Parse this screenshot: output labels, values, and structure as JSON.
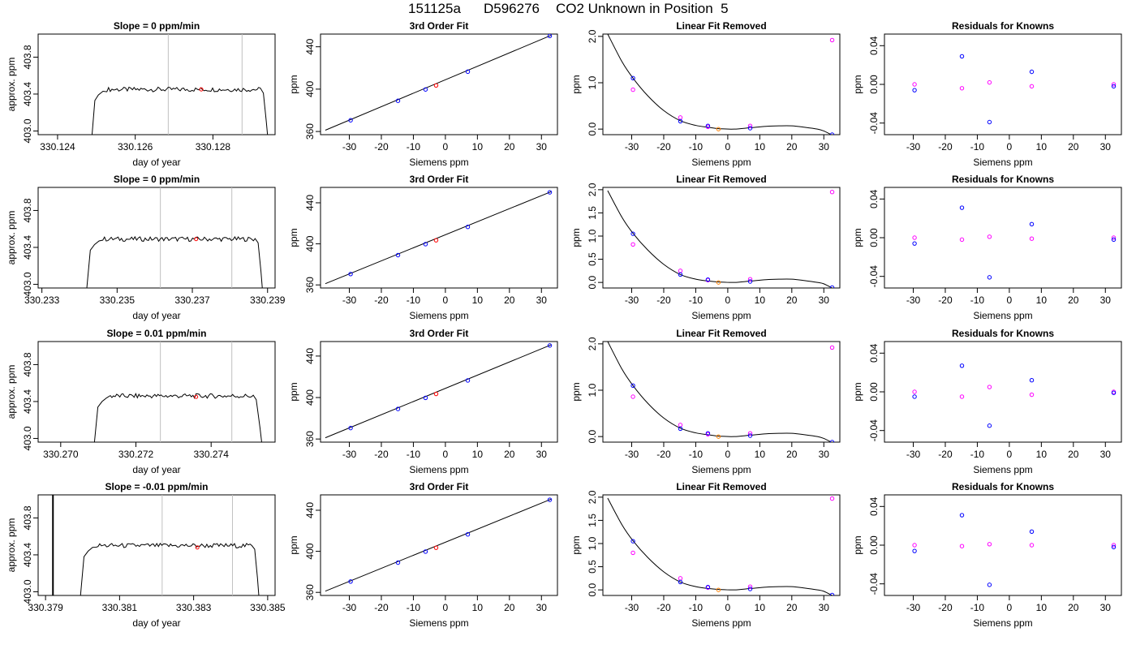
{
  "title": {
    "run": "151125a",
    "tank": "D596276",
    "description": "CO2 Unknown in Position  5"
  },
  "colors": {
    "line": "#000000",
    "known_fit": "#0000ff",
    "known_raw": "#ff00ff",
    "unknown": "#ff0000",
    "unknown_removed": "#ff8000",
    "window_lines": "#c0c0c0"
  },
  "chart_data": [
    {
      "type": "line",
      "title": "Slope =  0  ppm/min",
      "xlabel": "day of year",
      "ylabel": "approx. ppm",
      "xlim": [
        330.1235,
        330.1296
      ],
      "ylim": [
        402.96,
        404.05
      ],
      "xticks": [
        "330.124",
        "330.126",
        "330.128"
      ],
      "xtick_values": [
        330.124,
        330.126,
        330.128
      ],
      "yticks": [
        "403.0",
        "403.4",
        "403.8"
      ],
      "ytick_values": [
        403.0,
        403.4,
        403.8
      ],
      "rise_x": [
        330.12485,
        330.12505
      ],
      "fall_x": [
        330.1293,
        330.12945
      ],
      "plateau": 403.45,
      "window": [
        330.12685,
        330.12875
      ],
      "unknown_point": {
        "x": 330.1277,
        "y": 403.45
      }
    },
    {
      "type": "line",
      "title": "Slope =  0  ppm/min",
      "xlabel": "day of year",
      "ylabel": "approx. ppm",
      "xlim": [
        330.2329,
        330.2392
      ],
      "ylim": [
        402.96,
        404.05
      ],
      "xticks": [
        "330.233",
        "330.235",
        "330.237",
        "330.239"
      ],
      "xtick_values": [
        330.233,
        330.235,
        330.237,
        330.239
      ],
      "yticks": [
        "403.0",
        "403.4",
        "403.8"
      ],
      "ytick_values": [
        403.0,
        403.4,
        403.8
      ],
      "rise_x": [
        330.23415,
        330.2344
      ],
      "fall_x": [
        330.23875,
        330.2389
      ],
      "plateau": 403.49,
      "window": [
        330.23615,
        330.23805
      ],
      "unknown_point": {
        "x": 330.2371,
        "y": 403.49
      }
    },
    {
      "type": "line",
      "title": "Slope =  0.01  ppm/min",
      "xlabel": "day of year",
      "ylabel": "approx. ppm",
      "xlim": [
        330.2694,
        330.2757
      ],
      "ylim": [
        402.96,
        404.05
      ],
      "xticks": [
        "330.270",
        "330.272",
        "330.274"
      ],
      "xtick_values": [
        330.27,
        330.272,
        330.274
      ],
      "yticks": [
        "403.0",
        "403.4",
        "403.8"
      ],
      "ytick_values": [
        403.0,
        403.4,
        403.8
      ],
      "rise_x": [
        330.27085,
        330.2711
      ],
      "fall_x": [
        330.2752,
        330.2754
      ],
      "plateau": 403.46,
      "window": [
        330.27265,
        330.27455
      ],
      "unknown_point": {
        "x": 330.2736,
        "y": 403.45
      }
    },
    {
      "type": "line",
      "title": "Slope =  -0.01  ppm/min",
      "xlabel": "day of year",
      "ylabel": "approx. ppm",
      "xlim": [
        330.3788,
        330.3852
      ],
      "ylim": [
        402.96,
        404.05
      ],
      "xticks": [
        "330.379",
        "330.381",
        "330.383",
        "330.385"
      ],
      "xtick_values": [
        330.379,
        330.381,
        330.383,
        330.385
      ],
      "yticks": [
        "403.0",
        "403.4",
        "403.8"
      ],
      "ytick_values": [
        403.0,
        403.4,
        403.8
      ],
      "rise_x": [
        330.3799,
        330.38015
      ],
      "fall_x": [
        330.38465,
        330.3848
      ],
      "plateau": 403.5,
      "window": [
        330.38215,
        330.38405
      ],
      "unknown_point": {
        "x": 330.3831,
        "y": 403.48
      },
      "spike_x": 330.3792
    },
    {
      "type": "scatter",
      "title": "3rd Order Fit",
      "xlabel": "Siemens ppm",
      "ylabel": "ppm",
      "xlim": [
        -39,
        35
      ],
      "ylim": [
        357,
        452
      ],
      "xticks": [
        "-30",
        "-20",
        "-10",
        "0",
        "10",
        "20",
        "30"
      ],
      "xtick_values": [
        -30,
        -20,
        -10,
        0,
        10,
        20,
        30
      ],
      "yticks": [
        "360",
        "400",
        "440"
      ],
      "ytick_values": [
        360,
        400,
        440
      ],
      "fit_x": [
        -37.5,
        33
      ],
      "fit_y": [
        361.2,
        450.8
      ],
      "knowns": {
        "x": [
          -29.6,
          -14.8,
          -6.2,
          7.0,
          32.6
        ],
        "y": [
          370.6,
          389.0,
          399.7,
          416.5,
          450.2
        ]
      },
      "unknown": {
        "x": -2.9,
        "y": 403.5
      }
    },
    {
      "type": "scatter",
      "title": "3rd Order Fit",
      "xlabel": "Siemens ppm",
      "ylabel": "ppm",
      "xlim": [
        -39,
        35
      ],
      "ylim": [
        357,
        455
      ],
      "xticks": [
        "-30",
        "-20",
        "-10",
        "0",
        "10",
        "20",
        "30"
      ],
      "xtick_values": [
        -30,
        -20,
        -10,
        0,
        10,
        20,
        30
      ],
      "yticks": [
        "360",
        "400",
        "440"
      ],
      "ytick_values": [
        360,
        400,
        440
      ],
      "fit_x": [
        -37.5,
        33
      ],
      "fit_y": [
        361.2,
        450.8
      ],
      "knowns": {
        "x": [
          -29.6,
          -14.8,
          -6.2,
          7.0,
          32.6
        ],
        "y": [
          370.6,
          389.0,
          399.7,
          416.5,
          450.2
        ]
      },
      "unknown": {
        "x": -2.9,
        "y": 403.5
      }
    },
    {
      "type": "scatter",
      "title": "3rd Order Fit",
      "xlabel": "Siemens ppm",
      "ylabel": "ppm",
      "xlim": [
        -39,
        35
      ],
      "ylim": [
        357,
        454
      ],
      "xticks": [
        "-30",
        "-20",
        "-10",
        "0",
        "10",
        "20",
        "30"
      ],
      "xtick_values": [
        -30,
        -20,
        -10,
        0,
        10,
        20,
        30
      ],
      "yticks": [
        "360",
        "400",
        "440"
      ],
      "ytick_values": [
        360,
        400,
        440
      ],
      "fit_x": [
        -37.5,
        33
      ],
      "fit_y": [
        361.2,
        450.8
      ],
      "knowns": {
        "x": [
          -29.6,
          -14.8,
          -6.2,
          7.0,
          32.6
        ],
        "y": [
          370.6,
          389.0,
          399.7,
          416.5,
          450.2
        ]
      },
      "unknown": {
        "x": -2.9,
        "y": 403.5
      }
    },
    {
      "type": "scatter",
      "title": "3rd Order Fit",
      "xlabel": "Siemens ppm",
      "ylabel": "ppm",
      "xlim": [
        -39,
        35
      ],
      "ylim": [
        357,
        455
      ],
      "xticks": [
        "-30",
        "-20",
        "-10",
        "0",
        "10",
        "20",
        "30"
      ],
      "xtick_values": [
        -30,
        -20,
        -10,
        0,
        10,
        20,
        30
      ],
      "yticks": [
        "360",
        "400",
        "440"
      ],
      "ytick_values": [
        360,
        400,
        440
      ],
      "fit_x": [
        -37.5,
        33
      ],
      "fit_y": [
        361.2,
        450.8
      ],
      "knowns": {
        "x": [
          -29.6,
          -14.8,
          -6.2,
          7.0,
          32.6
        ],
        "y": [
          370.6,
          389.0,
          399.7,
          416.5,
          450.2
        ]
      },
      "unknown": {
        "x": -2.9,
        "y": 403.5
      }
    },
    {
      "type": "scatter",
      "title": "Linear Fit Removed",
      "xlabel": "Siemens ppm",
      "ylabel": "ppm",
      "xlim": [
        -39,
        35
      ],
      "ylim": [
        -0.12,
        2.05
      ],
      "xticks": [
        "-30",
        "-20",
        "-10",
        "0",
        "10",
        "20",
        "30"
      ],
      "xtick_values": [
        -30,
        -20,
        -10,
        0,
        10,
        20,
        30
      ],
      "yticks": [
        "0.0",
        "1.0",
        "2.0"
      ],
      "ytick_values": [
        0,
        1,
        2
      ],
      "curve_x": [
        -37.5,
        -33,
        -29.6,
        -25,
        -20,
        -14.8,
        -10,
        -6.2,
        -2.9,
        2,
        7,
        12,
        16,
        20,
        24,
        28,
        30,
        32.6
      ],
      "curve_y": [
        2.05,
        1.45,
        1.1,
        0.72,
        0.4,
        0.18,
        0.08,
        0.04,
        0.01,
        0.0,
        0.03,
        0.06,
        0.07,
        0.07,
        0.04,
        0.0,
        -0.04,
        -0.13
      ],
      "fitted": {
        "x": [
          -29.6,
          -14.8,
          -6.2,
          7.0,
          32.6
        ],
        "y": [
          1.1,
          0.17,
          0.07,
          0.02,
          -0.12
        ]
      },
      "raw": {
        "x": [
          -29.6,
          -14.8,
          -6.2,
          7.0,
          32.6
        ],
        "y": [
          0.85,
          0.25,
          0.05,
          0.07,
          1.92
        ]
      },
      "unknown": {
        "x": -2.9,
        "y": 0.0
      }
    },
    {
      "type": "scatter",
      "title": "Linear Fit Removed",
      "xlabel": "Siemens ppm",
      "ylabel": "ppm",
      "xlim": [
        -39,
        35
      ],
      "ylim": [
        -0.12,
        2.05
      ],
      "xticks": [
        "-30",
        "-20",
        "-10",
        "0",
        "10",
        "20",
        "30"
      ],
      "xtick_values": [
        -30,
        -20,
        -10,
        0,
        10,
        20,
        30
      ],
      "yticks": [
        "0.0",
        "0.5",
        "1.0",
        "1.5",
        "2.0"
      ],
      "ytick_values": [
        0,
        0.5,
        1,
        1.5,
        2
      ],
      "curve_x": [
        -37.5,
        -33,
        -29.6,
        -25,
        -20,
        -14.8,
        -10,
        -6.2,
        -2.9,
        2,
        7,
        12,
        16,
        20,
        24,
        28,
        30,
        32.6
      ],
      "curve_y": [
        1.98,
        1.4,
        1.06,
        0.7,
        0.39,
        0.17,
        0.07,
        0.03,
        0.01,
        0.0,
        0.03,
        0.06,
        0.07,
        0.07,
        0.04,
        0.0,
        -0.03,
        -0.12
      ],
      "fitted": {
        "x": [
          -29.6,
          -14.8,
          -6.2,
          7.0,
          32.6
        ],
        "y": [
          1.05,
          0.17,
          0.06,
          0.02,
          -0.11
        ]
      },
      "raw": {
        "x": [
          -29.6,
          -14.8,
          -6.2,
          7.0,
          32.6
        ],
        "y": [
          0.82,
          0.25,
          0.05,
          0.07,
          1.95
        ]
      },
      "unknown": {
        "x": -2.9,
        "y": 0.0
      }
    },
    {
      "type": "scatter",
      "title": "Linear Fit Removed",
      "xlabel": "Siemens ppm",
      "ylabel": "ppm",
      "xlim": [
        -39,
        35
      ],
      "ylim": [
        -0.12,
        2.05
      ],
      "xticks": [
        "-30",
        "-20",
        "-10",
        "0",
        "10",
        "20",
        "30"
      ],
      "xtick_values": [
        -30,
        -20,
        -10,
        0,
        10,
        20,
        30
      ],
      "yticks": [
        "0.0",
        "1.0",
        "2.0"
      ],
      "ytick_values": [
        0,
        1,
        2
      ],
      "curve_x": [
        -37.5,
        -33,
        -29.6,
        -25,
        -20,
        -14.8,
        -10,
        -6.2,
        -2.9,
        2,
        7,
        12,
        16,
        20,
        24,
        28,
        30,
        32.6
      ],
      "curve_y": [
        2.05,
        1.45,
        1.1,
        0.72,
        0.4,
        0.18,
        0.08,
        0.04,
        0.01,
        0.0,
        0.03,
        0.06,
        0.07,
        0.07,
        0.04,
        0.0,
        -0.04,
        -0.13
      ],
      "fitted": {
        "x": [
          -29.6,
          -14.8,
          -6.2,
          7.0,
          32.6
        ],
        "y": [
          1.1,
          0.17,
          0.07,
          0.02,
          -0.12
        ]
      },
      "raw": {
        "x": [
          -29.6,
          -14.8,
          -6.2,
          7.0,
          32.6
        ],
        "y": [
          0.86,
          0.25,
          0.05,
          0.07,
          1.92
        ]
      },
      "unknown": {
        "x": -2.9,
        "y": 0.0
      }
    },
    {
      "type": "scatter",
      "title": "Linear Fit Removed",
      "xlabel": "Siemens ppm",
      "ylabel": "ppm",
      "xlim": [
        -39,
        35
      ],
      "ylim": [
        -0.12,
        2.05
      ],
      "xticks": [
        "-30",
        "-20",
        "-10",
        "0",
        "10",
        "20",
        "30"
      ],
      "xtick_values": [
        -30,
        -20,
        -10,
        0,
        10,
        20,
        30
      ],
      "yticks": [
        "0.0",
        "0.5",
        "1.0",
        "1.5",
        "2.0"
      ],
      "ytick_values": [
        0,
        0.5,
        1,
        1.5,
        2
      ],
      "curve_x": [
        -37.5,
        -33,
        -29.6,
        -25,
        -20,
        -14.8,
        -10,
        -6.2,
        -2.9,
        2,
        7,
        12,
        16,
        20,
        24,
        28,
        30,
        32.6
      ],
      "curve_y": [
        1.98,
        1.4,
        1.06,
        0.7,
        0.39,
        0.17,
        0.07,
        0.03,
        0.01,
        0.0,
        0.03,
        0.06,
        0.07,
        0.07,
        0.04,
        0.0,
        -0.03,
        -0.12
      ],
      "fitted": {
        "x": [
          -29.6,
          -14.8,
          -6.2,
          7.0,
          32.6
        ],
        "y": [
          1.05,
          0.17,
          0.06,
          0.02,
          -0.11
        ]
      },
      "raw": {
        "x": [
          -29.6,
          -14.8,
          -6.2,
          7.0,
          32.6
        ],
        "y": [
          0.8,
          0.25,
          0.05,
          0.07,
          1.97
        ]
      },
      "unknown": {
        "x": -2.9,
        "y": 0.0
      }
    },
    {
      "type": "scatter",
      "title": "Residuals for Knowns",
      "xlabel": "Siemens ppm",
      "ylabel": "ppm",
      "xlim": [
        -39,
        35
      ],
      "ylim": [
        -0.052,
        0.052
      ],
      "xticks": [
        "-30",
        "-20",
        "-10",
        "0",
        "10",
        "20",
        "30"
      ],
      "xtick_values": [
        -30,
        -20,
        -10,
        0,
        10,
        20,
        30
      ],
      "yticks": [
        "-0.04",
        "0.00",
        "0.04"
      ],
      "ytick_values": [
        -0.04,
        0,
        0.04
      ],
      "fitted": {
        "x": [
          -29.6,
          -14.8,
          -6.2,
          7.0,
          32.6
        ],
        "y": [
          -0.006,
          0.029,
          -0.039,
          0.013,
          -0.002
        ]
      },
      "raw": {
        "x": [
          -29.6,
          -14.8,
          -6.2,
          7.0,
          32.6
        ],
        "y": [
          0.0,
          -0.004,
          0.002,
          -0.002,
          0.0
        ]
      }
    },
    {
      "type": "scatter",
      "title": "Residuals for Knowns",
      "xlabel": "Siemens ppm",
      "ylabel": "ppm",
      "xlim": [
        -39,
        35
      ],
      "ylim": [
        -0.052,
        0.052
      ],
      "xticks": [
        "-30",
        "-20",
        "-10",
        "0",
        "10",
        "20",
        "30"
      ],
      "xtick_values": [
        -30,
        -20,
        -10,
        0,
        10,
        20,
        30
      ],
      "yticks": [
        "-0.04",
        "0.00",
        "0.04"
      ],
      "ytick_values": [
        -0.04,
        0,
        0.04
      ],
      "fitted": {
        "x": [
          -29.6,
          -14.8,
          -6.2,
          7.0,
          32.6
        ],
        "y": [
          -0.006,
          0.031,
          -0.041,
          0.014,
          -0.002
        ]
      },
      "raw": {
        "x": [
          -29.6,
          -14.8,
          -6.2,
          7.0,
          32.6
        ],
        "y": [
          0.0,
          -0.002,
          0.001,
          -0.001,
          0.0
        ]
      }
    },
    {
      "type": "scatter",
      "title": "Residuals for Knowns",
      "xlabel": "Siemens ppm",
      "ylabel": "ppm",
      "xlim": [
        -39,
        35
      ],
      "ylim": [
        -0.052,
        0.052
      ],
      "xticks": [
        "-30",
        "-20",
        "-10",
        "0",
        "10",
        "20",
        "30"
      ],
      "xtick_values": [
        -30,
        -20,
        -10,
        0,
        10,
        20,
        30
      ],
      "yticks": [
        "-0.04",
        "0.00",
        "0.04"
      ],
      "ytick_values": [
        -0.04,
        0,
        0.04
      ],
      "fitted": {
        "x": [
          -29.6,
          -14.8,
          -6.2,
          7.0,
          32.6
        ],
        "y": [
          -0.005,
          0.027,
          -0.035,
          0.012,
          -0.001
        ]
      },
      "raw": {
        "x": [
          -29.6,
          -14.8,
          -6.2,
          7.0,
          32.6
        ],
        "y": [
          0.0,
          -0.005,
          0.005,
          -0.003,
          0.0
        ]
      }
    },
    {
      "type": "scatter",
      "title": "Residuals for Knowns",
      "xlabel": "Siemens ppm",
      "ylabel": "ppm",
      "xlim": [
        -39,
        35
      ],
      "ylim": [
        -0.052,
        0.052
      ],
      "xticks": [
        "-30",
        "-20",
        "-10",
        "0",
        "10",
        "20",
        "30"
      ],
      "xtick_values": [
        -30,
        -20,
        -10,
        0,
        10,
        20,
        30
      ],
      "yticks": [
        "-0.04",
        "0.00",
        "0.04"
      ],
      "ytick_values": [
        -0.04,
        0,
        0.04
      ],
      "fitted": {
        "x": [
          -29.6,
          -14.8,
          -6.2,
          7.0,
          32.6
        ],
        "y": [
          -0.006,
          0.031,
          -0.041,
          0.014,
          -0.002
        ]
      },
      "raw": {
        "x": [
          -29.6,
          -14.8,
          -6.2,
          7.0,
          32.6
        ],
        "y": [
          0.0,
          -0.001,
          0.001,
          -0.0,
          0.0
        ]
      }
    }
  ]
}
